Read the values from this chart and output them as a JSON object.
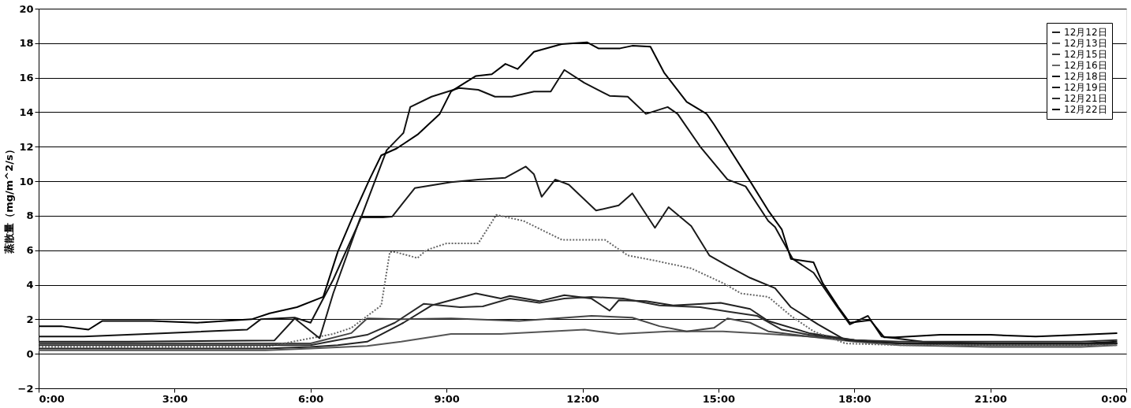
{
  "chart_data": {
    "type": "line",
    "ylabel": "蒸散量（mg/m^2/s）",
    "xlim": [
      0,
      24
    ],
    "ylim": [
      -2,
      20
    ],
    "xticks": [
      {
        "value": 0,
        "label": "0:00"
      },
      {
        "value": 3,
        "label": "3:00"
      },
      {
        "value": 6,
        "label": "6:00"
      },
      {
        "value": 9,
        "label": "9:00"
      },
      {
        "value": 12,
        "label": "12:00"
      },
      {
        "value": 15,
        "label": "15:00"
      },
      {
        "value": 18,
        "label": "18:00"
      },
      {
        "value": 21,
        "label": "21:00"
      },
      {
        "value": 24,
        "label": "0:00"
      }
    ],
    "yticks": [
      -2,
      0,
      2,
      4,
      6,
      8,
      10,
      12,
      14,
      16,
      18,
      20
    ],
    "grid": "y",
    "legend": "top right",
    "line_style": "solid",
    "marker": "none",
    "series": [
      {
        "name": "12月12日",
        "color": "#222222",
        "x": [
          0,
          3,
          5,
          6,
          6.6,
          7.25,
          8.05,
          8.67,
          9.65,
          10.2,
          10.4,
          11.05,
          11.6,
          12.2,
          12.6,
          12.8,
          13.4,
          14.0,
          15.05,
          15.7,
          16.1,
          17,
          18,
          19,
          21,
          23,
          23.8
        ],
        "values": [
          0.3,
          0.3,
          0.3,
          0.4,
          0.5,
          0.7,
          1.8,
          2.8,
          3.5,
          3.2,
          3.35,
          3.05,
          3.4,
          3.2,
          2.5,
          3.1,
          3.05,
          2.8,
          2.95,
          2.6,
          1.9,
          1.2,
          0.8,
          0.6,
          0.5,
          0.5,
          0.6
        ]
      },
      {
        "name": "12月13日",
        "color": "#555555",
        "x": [
          0,
          3,
          5,
          6,
          7.25,
          8,
          9.1,
          10.2,
          12.05,
          12.8,
          13.9,
          15.1,
          16.1,
          17,
          18,
          19,
          21,
          23,
          23.8
        ],
        "values": [
          0.2,
          0.2,
          0.2,
          0.3,
          0.45,
          0.7,
          1.15,
          1.15,
          1.4,
          1.15,
          1.3,
          1.3,
          1.15,
          1.0,
          0.7,
          0.5,
          0.4,
          0.4,
          0.5
        ]
      },
      {
        "name": "12月15日",
        "color": "#444444",
        "x": [
          0,
          3,
          5,
          6,
          6.9,
          7.25,
          8,
          9.1,
          10.6,
          12.2,
          13.1,
          13.7,
          14.3,
          14.9,
          15.2,
          15.7,
          16.1,
          17,
          18,
          19,
          21,
          23,
          23.8
        ],
        "values": [
          0.6,
          0.6,
          0.6,
          0.6,
          1.2,
          2.05,
          2.0,
          2.05,
          1.9,
          2.2,
          2.1,
          1.6,
          1.3,
          1.5,
          2.05,
          1.8,
          1.3,
          1.0,
          0.8,
          0.6,
          0.5,
          0.5,
          0.6
        ]
      },
      {
        "name": "12月16日",
        "color": "#666666",
        "line_style": "dotted",
        "x": [
          0,
          3,
          5,
          6.5,
          6.9,
          7.56,
          7.75,
          7.87,
          8.36,
          8.55,
          9.0,
          9.7,
          10.1,
          10.7,
          11.55,
          12.5,
          13.0,
          13.6,
          14.4,
          15.1,
          15.5,
          16.1,
          16.6,
          17.1,
          17.8,
          19,
          21,
          23,
          23.8
        ],
        "values": [
          0.4,
          0.4,
          0.4,
          1.15,
          1.5,
          2.8,
          5.9,
          5.9,
          5.55,
          6.0,
          6.4,
          6.4,
          8.05,
          7.7,
          6.6,
          6.6,
          5.7,
          5.4,
          4.95,
          4.1,
          3.5,
          3.3,
          2.2,
          1.3,
          0.6,
          0.5,
          0.5,
          0.5,
          0.5
        ]
      },
      {
        "name": "12月18日",
        "color": "#111111",
        "x": [
          0,
          1,
          2.8,
          4.6,
          4.9,
          5.65,
          6.0,
          6.5,
          7.1,
          7.68,
          8.05,
          8.2,
          8.67,
          9.28,
          9.7,
          10.07,
          10.44,
          10.93,
          11.3,
          11.6,
          12.04,
          12.6,
          13.0,
          13.4,
          13.88,
          14.1,
          14.6,
          15.2,
          15.6,
          16.1,
          16.25,
          16.64,
          17.1,
          17.6,
          17.9,
          18.3,
          18.6,
          19.5,
          21,
          23,
          23.8
        ],
        "values": [
          1.0,
          1.0,
          1.2,
          1.4,
          2.0,
          2.1,
          1.8,
          4.3,
          7.8,
          11.8,
          12.8,
          14.3,
          14.9,
          15.4,
          15.3,
          14.9,
          14.9,
          15.2,
          15.2,
          16.45,
          15.7,
          14.95,
          14.9,
          13.9,
          14.3,
          13.9,
          12.0,
          10.1,
          9.7,
          7.7,
          7.35,
          5.5,
          4.7,
          2.8,
          1.7,
          2.2,
          1.0,
          0.7,
          0.6,
          0.6,
          0.7
        ]
      },
      {
        "name": "12月19日",
        "color": "#1a1a1a",
        "x": [
          0,
          2,
          4,
          5.2,
          5.65,
          6.2,
          6.5,
          7.1,
          7.6,
          7.8,
          8.3,
          9.1,
          9.7,
          10.3,
          10.75,
          10.93,
          11.1,
          11.4,
          11.7,
          12.3,
          12.8,
          13.1,
          13.4,
          13.6,
          13.9,
          14.4,
          14.8,
          15.2,
          15.7,
          16.25,
          16.6,
          17.2,
          17.8,
          19,
          21,
          23,
          23.8
        ],
        "values": [
          0.7,
          0.7,
          0.75,
          0.77,
          2.05,
          0.9,
          3.5,
          7.9,
          7.9,
          7.95,
          9.6,
          9.95,
          10.1,
          10.2,
          10.85,
          10.4,
          9.1,
          10.1,
          9.8,
          8.3,
          8.6,
          9.3,
          8.1,
          7.3,
          8.5,
          7.4,
          5.7,
          5.1,
          4.4,
          3.8,
          2.7,
          1.7,
          0.8,
          0.6,
          0.6,
          0.6,
          0.6
        ]
      },
      {
        "name": "12月21日",
        "color": "#2b2b2b",
        "x": [
          0,
          3,
          5,
          6,
          6.6,
          7.25,
          7.86,
          8.5,
          9.3,
          9.8,
          10.4,
          11.05,
          11.6,
          12.2,
          12.9,
          13.7,
          14.6,
          15.2,
          15.85,
          16.4,
          17,
          18,
          19,
          21,
          23,
          23.8
        ],
        "values": [
          0.5,
          0.5,
          0.5,
          0.5,
          0.8,
          1.1,
          1.8,
          2.9,
          2.7,
          2.75,
          3.2,
          2.95,
          3.2,
          3.3,
          3.2,
          2.8,
          2.7,
          2.45,
          2.2,
          1.4,
          1.1,
          0.8,
          0.7,
          0.7,
          0.7,
          0.8
        ]
      },
      {
        "name": "12月22日",
        "color": "#000000",
        "x": [
          0,
          0.5,
          1.1,
          1.4,
          2.5,
          3.5,
          4.7,
          5.1,
          5.7,
          6.28,
          6.6,
          6.94,
          7.3,
          7.56,
          7.9,
          8.36,
          8.85,
          9.1,
          9.65,
          10,
          10.3,
          10.57,
          10.93,
          11.54,
          12.1,
          12.35,
          12.83,
          13.1,
          13.5,
          13.8,
          14.3,
          14.74,
          14.9,
          15.24,
          15.7,
          16.1,
          16.4,
          16.6,
          17.1,
          17.3,
          17.65,
          17.9,
          18.35,
          18.66,
          18.9,
          19.9,
          21,
          22,
          23,
          23.8
        ],
        "values": [
          1.6,
          1.6,
          1.4,
          1.9,
          1.9,
          1.8,
          2.0,
          2.35,
          2.7,
          3.3,
          5.9,
          8.0,
          10.1,
          11.5,
          11.9,
          12.7,
          13.9,
          15.2,
          16.1,
          16.2,
          16.8,
          16.5,
          17.5,
          17.95,
          18.05,
          17.7,
          17.7,
          17.85,
          17.8,
          16.3,
          14.6,
          13.9,
          13.3,
          11.9,
          10.0,
          8.3,
          7.2,
          5.5,
          5.3,
          4.1,
          2.7,
          1.8,
          1.95,
          0.95,
          0.95,
          1.1,
          1.1,
          1.0,
          1.1,
          1.2
        ]
      }
    ]
  }
}
